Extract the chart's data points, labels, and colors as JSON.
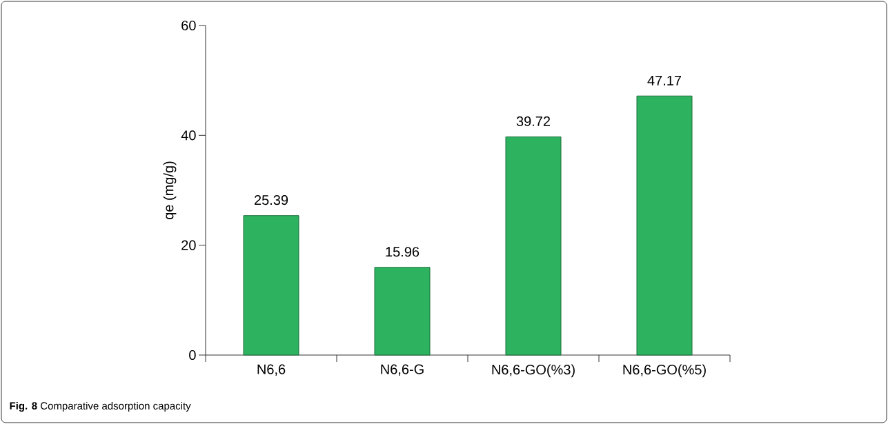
{
  "chart_data": {
    "type": "bar",
    "ylabel": "qe (mg/g)",
    "categories": [
      "N6,6",
      "N6,6-G",
      "N6,6-GO(%3)",
      "N6,6-GO(%5)"
    ],
    "values": [
      25.39,
      15.96,
      39.72,
      47.17
    ],
    "color": "#2db35f",
    "ylim": [
      0,
      60
    ],
    "yticks": [
      0,
      20,
      40,
      60
    ],
    "data_labels": true,
    "annotations": [
      "**Fig. 8** Comparative adsorption capacity"
    ]
  }
}
